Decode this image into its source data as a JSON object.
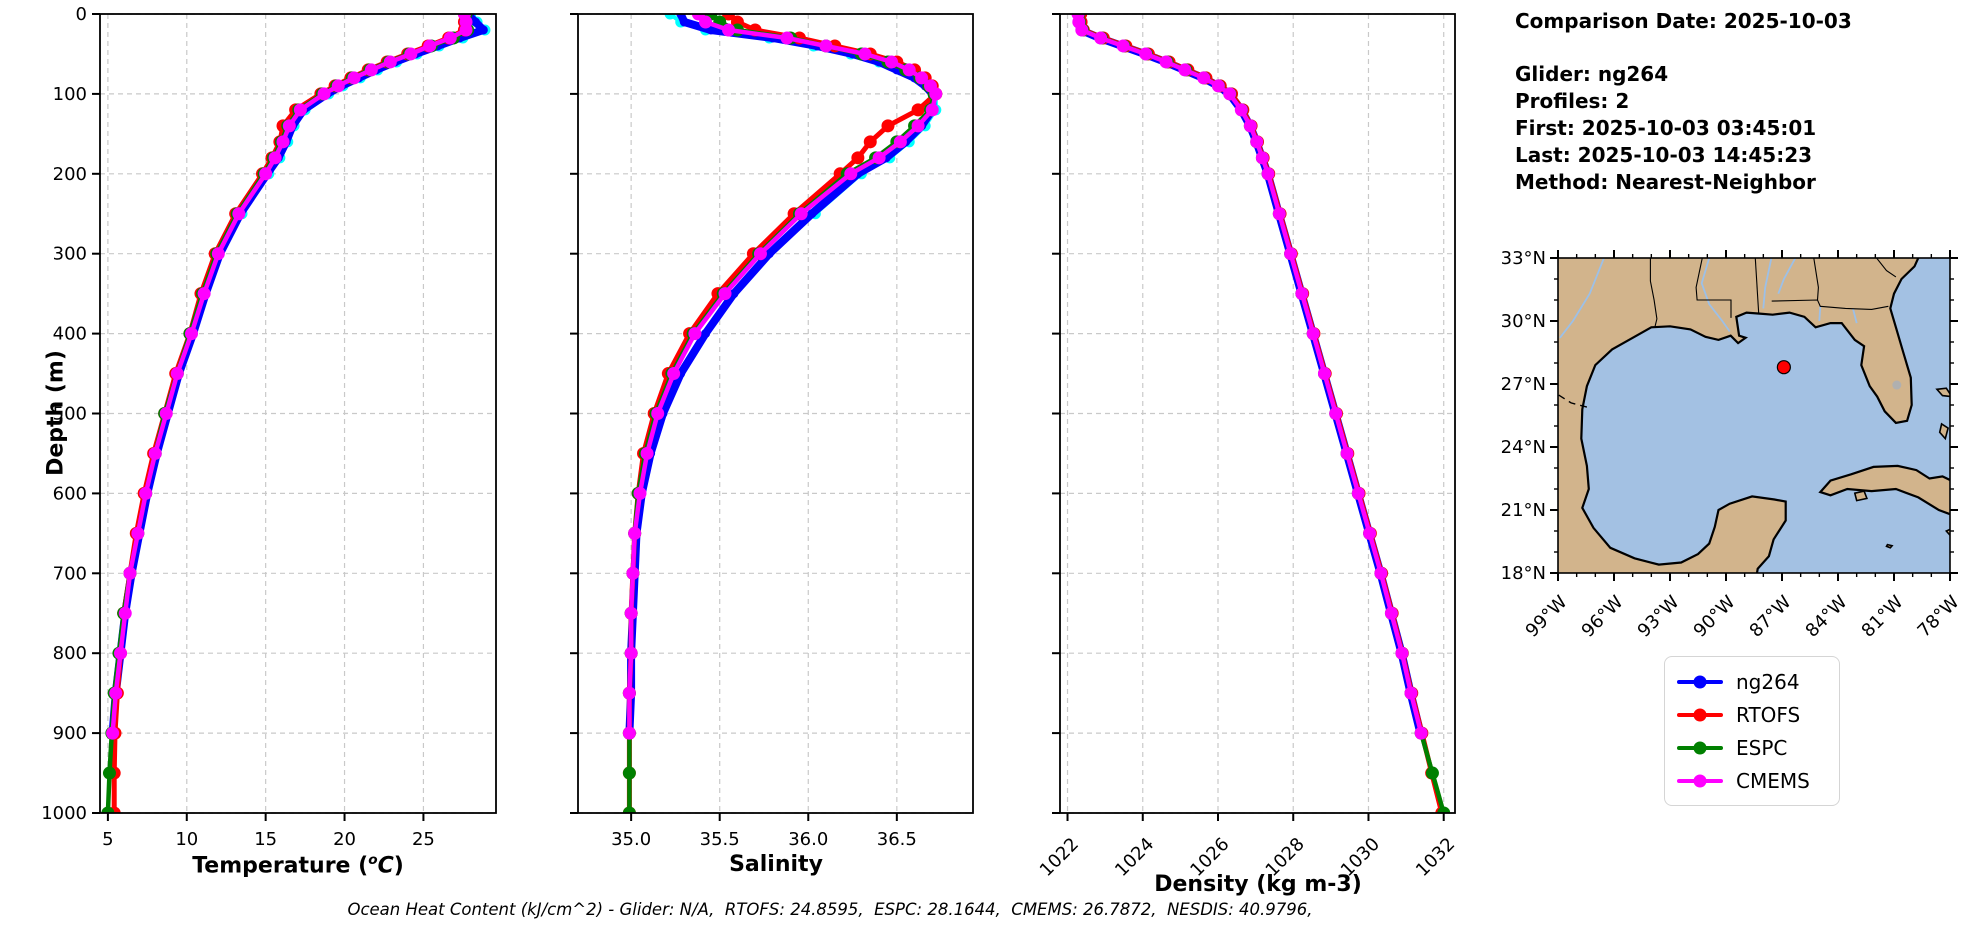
{
  "info_panel": {
    "comparison_date": "Comparison Date: 2025-10-03",
    "glider": "Glider: ng264",
    "profiles": "Profiles: 2",
    "first": "First: 2025-10-03 03:45:01",
    "last": "Last: 2025-10-03 14:45:23",
    "method": "Method: Nearest-Neighbor"
  },
  "caption": "Ocean Heat Content (kJ/cm^2) - Glider: N/A,  RTOFS: 24.8595,  ESPC: 28.1644,  CMEMS: 26.7872,  NESDIS: 40.9796,",
  "axes": {
    "temp_prefix": "Temperature (",
    "temp_sup": "o",
    "temp_var": "C",
    "temp_close": ")"
  },
  "legend": {
    "items": [
      {
        "label": "ng264",
        "color": "#0000ff"
      },
      {
        "label": "RTOFS",
        "color": "#ff0000"
      },
      {
        "label": "ESPC",
        "color": "#008000"
      },
      {
        "label": "CMEMS",
        "color": "#ff00ff"
      }
    ]
  },
  "map": {
    "extent": {
      "lon_min": -99,
      "lon_max": -78,
      "lat_min": 18,
      "lat_max": 33
    },
    "lat_tick_values": [
      33,
      30,
      27,
      24,
      21,
      18
    ],
    "lat_tick_labels": [
      "33°N",
      "30°N",
      "27°N",
      "24°N",
      "21°N",
      "18°N"
    ],
    "lon_tick_values": [
      -99,
      -96,
      -93,
      -90,
      -87,
      -84,
      -81,
      -78
    ],
    "lon_tick_labels": [
      "99°W",
      "96°W",
      "93°W",
      "90°W",
      "87°W",
      "84°W",
      "81°W",
      "78°W"
    ],
    "land_color": "#d2b48c",
    "water_color": "#a3c1e3",
    "river_color": "#9cc0e8",
    "lake_color": "#b0b0b0",
    "marker": {
      "lon": -86.9,
      "lat": 27.8,
      "color": "#ff0000"
    }
  },
  "chart_data": [
    {
      "type": "line",
      "xlabel": "Temperature (°C)",
      "ylabel": "Depth (m)",
      "xlim": [
        4.5,
        29.6
      ],
      "xticks": [
        5,
        10,
        15,
        20,
        25
      ],
      "xtick_labels": [
        "5",
        "10",
        "15",
        "20",
        "25"
      ],
      "x_tick_rotation": 0,
      "ylim": [
        0,
        1000
      ],
      "yticks": [
        0,
        100,
        200,
        300,
        400,
        500,
        600,
        700,
        800,
        900,
        1000
      ],
      "depths": [
        0,
        10,
        20,
        30,
        40,
        50,
        60,
        70,
        80,
        90,
        100,
        120,
        140,
        160,
        180,
        200,
        250,
        300,
        350,
        400,
        450,
        500,
        550,
        600,
        650,
        700,
        750,
        800,
        850,
        900,
        950,
        1000
      ],
      "series": [
        {
          "name": "NESDIS",
          "color": "#00ffff",
          "values": [
            28.0,
            28.4,
            28.9,
            27.5,
            26.0,
            24.6,
            23.3,
            22.1,
            21.0,
            19.9,
            19.0,
            17.5,
            16.8,
            16.4,
            15.9,
            15.2,
            13.5,
            null,
            null,
            null,
            null,
            null,
            null,
            null,
            null,
            null,
            null,
            null,
            null,
            null,
            null,
            null
          ]
        },
        {
          "name": "ng264",
          "color": "#0000ff",
          "values": [
            27.8,
            28.3,
            28.8,
            27.3,
            25.9,
            24.5,
            23.2,
            22.0,
            20.9,
            19.8,
            18.9,
            17.4,
            16.7,
            16.3,
            15.8,
            15.1,
            13.4,
            12.1,
            11.2,
            10.4,
            9.5,
            8.8,
            8.1,
            7.5,
            7.0,
            6.5,
            6.1,
            5.8,
            5.5,
            5.3,
            null,
            null
          ]
        },
        {
          "name": "RTOFS",
          "color": "#ff0000",
          "values": [
            27.6,
            27.6,
            27.6,
            26.6,
            25.3,
            24.0,
            22.7,
            21.5,
            20.4,
            19.4,
            18.5,
            16.9,
            16.1,
            15.9,
            15.4,
            14.8,
            13.1,
            11.8,
            10.9,
            10.2,
            9.3,
            8.6,
            7.9,
            7.3,
            6.8,
            6.4,
            6.0,
            5.8,
            5.6,
            5.45,
            5.4,
            5.4
          ]
        },
        {
          "name": "ESPC",
          "color": "#008000",
          "values": [
            27.7,
            27.7,
            27.8,
            26.9,
            25.5,
            24.1,
            22.8,
            21.6,
            20.5,
            19.5,
            18.6,
            17.1,
            16.4,
            16.0,
            15.5,
            14.9,
            13.2,
            11.9,
            11.0,
            10.2,
            9.4,
            8.6,
            8.0,
            7.4,
            6.9,
            6.4,
            6.0,
            5.7,
            5.4,
            5.25,
            5.1,
            5.0
          ]
        },
        {
          "name": "CMEMS",
          "color": "#ff00ff",
          "values": [
            27.6,
            27.7,
            27.7,
            26.7,
            25.4,
            24.2,
            22.9,
            21.7,
            20.6,
            19.6,
            18.7,
            17.2,
            16.5,
            16.1,
            15.6,
            15.0,
            13.3,
            12.0,
            11.1,
            10.3,
            9.4,
            8.7,
            8.0,
            7.4,
            6.9,
            6.4,
            6.1,
            5.8,
            5.5,
            5.3,
            null,
            null
          ]
        }
      ]
    },
    {
      "type": "line",
      "xlabel": "Salinity",
      "xlim": [
        34.7,
        36.93
      ],
      "xticks": [
        35.0,
        35.5,
        36.0,
        36.5
      ],
      "xtick_labels": [
        "35.0",
        "35.5",
        "36.0",
        "36.5"
      ],
      "x_tick_rotation": 0,
      "ylim": [
        0,
        1000
      ],
      "yticks": [
        0,
        100,
        200,
        300,
        400,
        500,
        600,
        700,
        800,
        900,
        1000
      ],
      "depths": [
        0,
        10,
        20,
        30,
        40,
        50,
        60,
        70,
        80,
        90,
        100,
        120,
        140,
        160,
        180,
        200,
        250,
        300,
        350,
        400,
        450,
        500,
        550,
        600,
        650,
        700,
        750,
        800,
        850,
        900,
        950,
        1000
      ],
      "series": [
        {
          "name": "NESDIS",
          "color": "#00ffff",
          "values": [
            35.22,
            35.28,
            35.42,
            35.78,
            36.03,
            36.24,
            36.4,
            36.52,
            36.62,
            36.68,
            36.72,
            36.72,
            36.66,
            36.57,
            36.46,
            36.3,
            36.04,
            null,
            null,
            null,
            null,
            null,
            null,
            null,
            null,
            null,
            null,
            null,
            null,
            null,
            null,
            null
          ]
        },
        {
          "name": "ng264",
          "color": "#0000ff",
          "values": [
            35.28,
            35.3,
            35.45,
            35.8,
            36.05,
            36.25,
            36.4,
            36.5,
            36.6,
            36.66,
            36.7,
            36.7,
            36.64,
            36.55,
            36.44,
            36.28,
            36.02,
            35.78,
            35.58,
            35.42,
            35.28,
            35.18,
            35.11,
            35.06,
            35.03,
            35.02,
            35.01,
            35.0,
            35.0,
            34.99,
            null,
            null
          ]
        },
        {
          "name": "RTOFS",
          "color": "#ff0000",
          "values": [
            35.55,
            35.6,
            35.7,
            35.95,
            36.15,
            36.35,
            36.5,
            36.6,
            36.66,
            36.7,
            36.72,
            36.62,
            36.45,
            36.35,
            36.28,
            36.18,
            35.92,
            35.69,
            35.49,
            35.33,
            35.21,
            35.13,
            35.07,
            35.04,
            35.02,
            35.01,
            35.0,
            35.0,
            34.99,
            34.99,
            34.99,
            34.99
          ]
        },
        {
          "name": "ESPC",
          "color": "#008000",
          "values": [
            35.45,
            35.5,
            35.6,
            35.9,
            36.1,
            36.3,
            36.45,
            36.55,
            36.63,
            36.68,
            36.71,
            36.69,
            36.6,
            36.5,
            36.38,
            36.22,
            35.95,
            35.72,
            35.52,
            35.35,
            35.23,
            35.14,
            35.08,
            35.04,
            35.02,
            35.01,
            35.0,
            35.0,
            34.99,
            34.99,
            34.99,
            34.99
          ]
        },
        {
          "name": "CMEMS",
          "color": "#ff00ff",
          "values": [
            35.38,
            35.42,
            35.55,
            35.88,
            36.1,
            36.32,
            36.47,
            36.57,
            36.64,
            36.69,
            36.72,
            36.7,
            36.62,
            36.52,
            36.4,
            36.24,
            35.96,
            35.73,
            35.53,
            35.36,
            35.24,
            35.15,
            35.09,
            35.05,
            35.02,
            35.01,
            35.0,
            35.0,
            34.99,
            34.99,
            null,
            null
          ]
        }
      ]
    },
    {
      "type": "line",
      "xlabel": "Density (kg m-3)",
      "xlim": [
        1021.8,
        1032.3
      ],
      "xticks": [
        1022,
        1024,
        1026,
        1028,
        1030,
        1032
      ],
      "xtick_labels": [
        "1022",
        "1024",
        "1026",
        "1028",
        "1030",
        "1032"
      ],
      "x_tick_rotation": 45,
      "ylim": [
        0,
        1000
      ],
      "yticks": [
        0,
        100,
        200,
        300,
        400,
        500,
        600,
        700,
        800,
        900,
        1000
      ],
      "depths": [
        0,
        10,
        20,
        30,
        40,
        50,
        60,
        70,
        80,
        90,
        100,
        120,
        140,
        160,
        180,
        200,
        250,
        300,
        350,
        400,
        450,
        500,
        550,
        600,
        650,
        700,
        750,
        800,
        850,
        900,
        950,
        1000
      ],
      "series": [
        {
          "name": "ng264",
          "color": "#0000ff",
          "values": [
            1022.25,
            1022.28,
            1022.35,
            1022.85,
            1023.45,
            1024.05,
            1024.6,
            1025.1,
            1025.6,
            1026.0,
            1026.3,
            1026.62,
            1026.85,
            1027.02,
            1027.17,
            1027.32,
            1027.62,
            1027.92,
            1028.22,
            1028.52,
            1028.82,
            1029.12,
            1029.42,
            1029.72,
            1030.02,
            1030.32,
            1030.6,
            1030.88,
            1031.12,
            1031.38,
            null,
            null
          ]
        },
        {
          "name": "RTOFS",
          "color": "#ff0000",
          "values": [
            1022.35,
            1022.36,
            1022.42,
            1022.95,
            1023.55,
            1024.15,
            1024.7,
            1025.2,
            1025.68,
            1026.06,
            1026.36,
            1026.66,
            1026.88,
            1027.05,
            1027.2,
            1027.35,
            1027.65,
            1027.95,
            1028.25,
            1028.55,
            1028.85,
            1029.15,
            1029.45,
            1029.75,
            1030.05,
            1030.35,
            1030.63,
            1030.9,
            1031.15,
            1031.42,
            1031.68,
            1031.95
          ]
        },
        {
          "name": "ESPC",
          "color": "#008000",
          "values": [
            1022.3,
            1022.32,
            1022.4,
            1022.9,
            1023.5,
            1024.1,
            1024.65,
            1025.15,
            1025.63,
            1026.02,
            1026.32,
            1026.63,
            1026.86,
            1027.03,
            1027.18,
            1027.33,
            1027.63,
            1027.93,
            1028.23,
            1028.53,
            1028.83,
            1029.13,
            1029.43,
            1029.73,
            1030.03,
            1030.33,
            1030.61,
            1030.89,
            1031.13,
            1031.4,
            1031.7,
            1032.0
          ]
        },
        {
          "name": "CMEMS",
          "color": "#ff00ff",
          "values": [
            1022.28,
            1022.3,
            1022.38,
            1022.88,
            1023.48,
            1024.08,
            1024.62,
            1025.12,
            1025.62,
            1026.01,
            1026.31,
            1026.62,
            1026.86,
            1027.03,
            1027.18,
            1027.33,
            1027.63,
            1027.93,
            1028.23,
            1028.53,
            1028.83,
            1029.13,
            1029.43,
            1029.73,
            1030.03,
            1030.33,
            1030.61,
            1030.89,
            1031.13,
            1031.4,
            null,
            null
          ]
        }
      ]
    }
  ]
}
